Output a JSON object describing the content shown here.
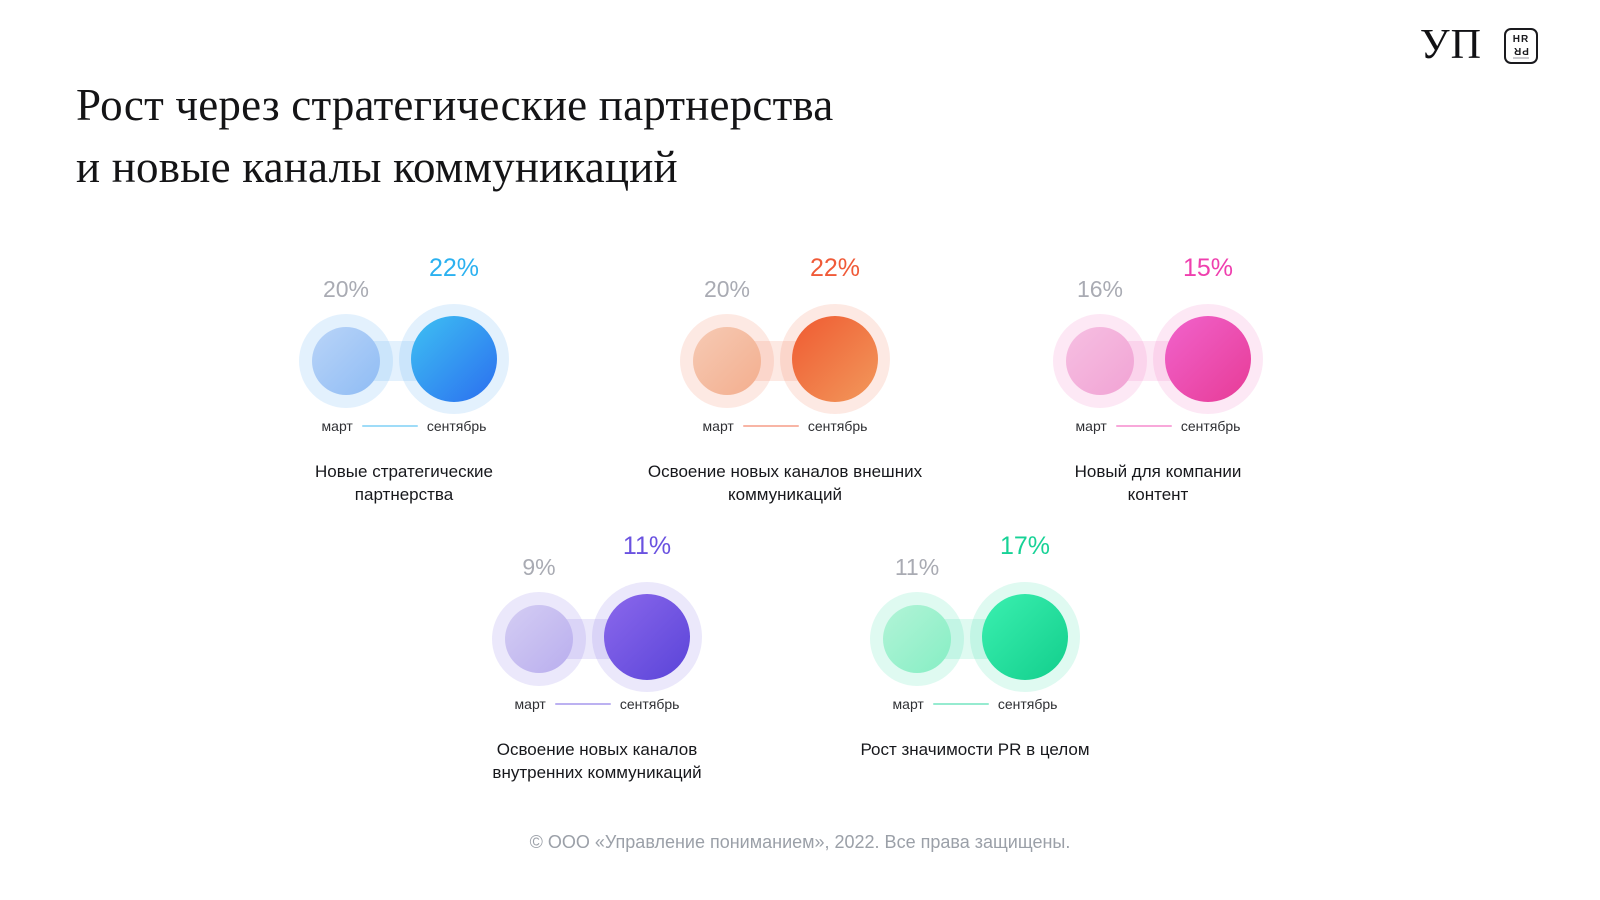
{
  "title": {
    "line1": "Рост через стратегические партнерства",
    "line2": "и новые каналы коммуникаций"
  },
  "logo": {
    "wordmark": "УП",
    "badge_top": "HR",
    "badge_bottom": "PR"
  },
  "months": {
    "start": "март",
    "end": "сентябрь"
  },
  "charts": [
    {
      "name": "strategic-partnerships",
      "before": "20%",
      "after": "22%",
      "caption": "Новые стратегические\nпартнерства",
      "colors": {
        "accent": "#2bb1f0",
        "halo": "rgba(80,170,245,0.16)",
        "before_from": "#b9d4f8",
        "before_to": "#8fbcf4",
        "after_from": "#3ec1f2",
        "after_to": "#2b6ef0"
      }
    },
    {
      "name": "external-communications",
      "before": "20%",
      "after": "22%",
      "caption": "Освоение новых каналов внешних\nкоммуникаций",
      "colors": {
        "accent": "#f05a38",
        "halo": "rgba(240,120,80,0.16)",
        "before_from": "#f6cab4",
        "before_to": "#f3ae8e",
        "after_from": "#ef5a31",
        "after_to": "#f2995c"
      }
    },
    {
      "name": "new-company-content",
      "before": "16%",
      "after": "15%",
      "caption": "Новый для компании\nконтент",
      "colors": {
        "accent": "#ef3fae",
        "halo": "rgba(240,110,190,0.16)",
        "before_from": "#f6bfe2",
        "before_to": "#f1a3d4",
        "after_from": "#f163cc",
        "after_to": "#e73b96"
      }
    },
    {
      "name": "internal-communications",
      "before": "9%",
      "after": "11%",
      "caption": "Освоение новых каналов\nвнутренних коммуникаций",
      "colors": {
        "accent": "#6a52e0",
        "halo": "rgba(120,100,230,0.15)",
        "before_from": "#d4cdf3",
        "before_to": "#b9aeee",
        "after_from": "#8b68ec",
        "after_to": "#5a44d8"
      }
    },
    {
      "name": "pr-importance-growth",
      "before": "11%",
      "after": "17%",
      "caption": "Рост значимости PR в целом",
      "colors": {
        "accent": "#17d296",
        "halo": "rgba(40,220,160,0.15)",
        "before_from": "#b2f4d7",
        "before_to": "#86eec4",
        "after_from": "#3bf0b0",
        "after_to": "#12ce8c"
      }
    }
  ],
  "footer": "© ООО «Управление пониманием», 2022. Все права защищены.",
  "chart_data": {
    "type": "bar",
    "title": "Рост через стратегические партнерства и новые каналы коммуникаций",
    "unit": "%",
    "categories": [
      "Новые стратегические партнерства",
      "Освоение новых каналов внешних коммуникаций",
      "Новый для компании контент",
      "Освоение новых каналов внутренних коммуникаций",
      "Рост значимости PR в целом"
    ],
    "series": [
      {
        "name": "март",
        "values": [
          20,
          20,
          16,
          9,
          11
        ]
      },
      {
        "name": "сентябрь",
        "values": [
          22,
          22,
          15,
          11,
          17
        ]
      }
    ],
    "legend_position": "below-each-pair",
    "grid": false
  }
}
